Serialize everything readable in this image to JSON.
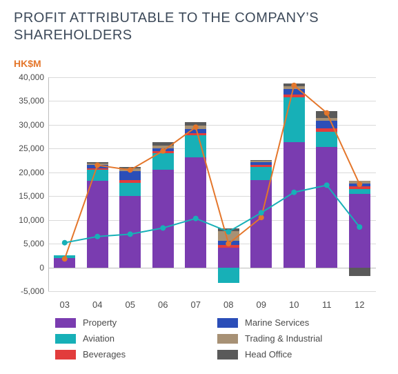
{
  "chart": {
    "type": "stacked-bar-with-lines",
    "title": "PROFIT ATTRIBUTABLE TO THE COMPANY’S SHAREHOLDERS",
    "title_color": "#3d4a5a",
    "title_fontsize": 20,
    "ylabel": "HK$M",
    "ylabel_color": "#e4762b",
    "ylabel_fontsize": 14,
    "background_color": "#ffffff",
    "grid_color": "#d9d9d9",
    "axis_color": "#bdbdbd",
    "tick_color": "#4a4a4a",
    "ylim": [
      -5000,
      40000
    ],
    "yticks": [
      -5000,
      0,
      5000,
      10000,
      15000,
      20000,
      25000,
      30000,
      35000,
      40000
    ],
    "ytick_labels": [
      "-5,000",
      "0",
      "5,000",
      "10,000",
      "15,000",
      "20,000",
      "25,000",
      "30,000",
      "35,000",
      "40,000"
    ],
    "categories": [
      "03",
      "04",
      "05",
      "06",
      "07",
      "08",
      "09",
      "10",
      "11",
      "12"
    ],
    "bar_width": 0.66,
    "series": [
      {
        "name": "Property",
        "color": "#7a3cb0"
      },
      {
        "name": "Aviation",
        "color": "#17b0b7"
      },
      {
        "name": "Beverages",
        "color": "#e23c3c"
      },
      {
        "name": "Marine Services",
        "color": "#2b4eb8"
      },
      {
        "name": "Trading & Industrial",
        "color": "#a79175"
      },
      {
        "name": "Head Office",
        "color": "#5a5a5a"
      }
    ],
    "stacks": [
      {
        "cat": "03",
        "Property": 1900,
        "Aviation": 600,
        "Beverages": 0,
        "Marine Services": 0,
        "Trading & Industrial": 0,
        "Head Office": 0
      },
      {
        "cat": "04",
        "Property": 18200,
        "Aviation": 2300,
        "Beverages": 400,
        "Marine Services": 700,
        "Trading & Industrial": 300,
        "Head Office": 200
      },
      {
        "cat": "05",
        "Property": 15000,
        "Aviation": 2800,
        "Beverages": 600,
        "Marine Services": 1800,
        "Trading & Industrial": 600,
        "Head Office": 400
      },
      {
        "cat": "06",
        "Property": 20500,
        "Aviation": 3500,
        "Beverages": 400,
        "Marine Services": 700,
        "Trading & Industrial": 500,
        "Head Office": 800
      },
      {
        "cat": "07",
        "Property": 23200,
        "Aviation": 4600,
        "Beverages": 500,
        "Marine Services": 800,
        "Trading & Industrial": 700,
        "Head Office": 700
      },
      {
        "cat": "08",
        "Property": 4200,
        "Aviation": -3300,
        "Beverages": 500,
        "Marine Services": 900,
        "Trading & Industrial": 2000,
        "Head Office": 600
      },
      {
        "cat": "09",
        "Property": 18300,
        "Aviation": 2900,
        "Beverages": 400,
        "Marine Services": 500,
        "Trading & Industrial": 300,
        "Head Office": 200
      },
      {
        "cat": "10",
        "Property": 26300,
        "Aviation": 9500,
        "Beverages": 500,
        "Marine Services": 1300,
        "Trading & Industrial": 500,
        "Head Office": 600
      },
      {
        "cat": "11",
        "Property": 25300,
        "Aviation": 3300,
        "Beverages": 600,
        "Marine Services": 1600,
        "Trading & Industrial": 700,
        "Head Office": 1400
      },
      {
        "cat": "12",
        "Property": 15500,
        "Aviation": 1000,
        "Beverages": 500,
        "Marine Services": 600,
        "Trading & Industrial": 600,
        "Head Office": -1800
      }
    ],
    "line_series": [
      {
        "name": "orange-line",
        "color": "#e4762b",
        "width": 2,
        "marker": "circle",
        "marker_size": 4,
        "values": [
          1800,
          21500,
          20500,
          24500,
          29500,
          5000,
          10500,
          38300,
          32500,
          17500
        ]
      },
      {
        "name": "teal-line",
        "color": "#17b0b7",
        "width": 2,
        "marker": "circle",
        "marker_size": 4,
        "values": [
          5200,
          6500,
          7000,
          8300,
          10300,
          7500,
          11500,
          15800,
          17300,
          8500
        ]
      }
    ],
    "legend_order": [
      [
        "Property",
        "Marine Services"
      ],
      [
        "Aviation",
        "Trading & Industrial"
      ],
      [
        "Beverages",
        "Head Office"
      ]
    ]
  }
}
